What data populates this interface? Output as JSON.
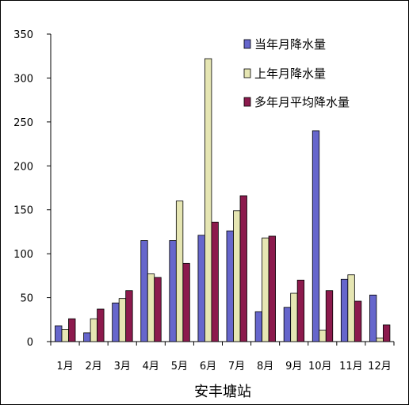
{
  "chart_data": {
    "type": "bar",
    "xlabel": "安丰塘站",
    "ylabel": "",
    "ylim": [
      0,
      350
    ],
    "yticks": [
      0,
      50,
      100,
      150,
      200,
      250,
      300,
      350
    ],
    "grid": false,
    "legend_position": "top-right",
    "categories": [
      "1月",
      "2月",
      "3月",
      "4月",
      "5月",
      "6月",
      "7月",
      "8月",
      "9月",
      "10月",
      "11月",
      "12月"
    ],
    "series": [
      {
        "name": "当年月降水量",
        "color": "#6666cc",
        "values": [
          18,
          10,
          44,
          115,
          115,
          121,
          126,
          34,
          39,
          240,
          71,
          53
        ]
      },
      {
        "name": "上年月降水量",
        "color": "#e6e6b3",
        "values": [
          14,
          26,
          49,
          77,
          160,
          322,
          149,
          118,
          55,
          13,
          76,
          4
        ]
      },
      {
        "name": "多年月平均降水量",
        "color": "#8c1a4d",
        "values": [
          26,
          37,
          58,
          73,
          89,
          136,
          166,
          120,
          70,
          58,
          46,
          19
        ]
      }
    ]
  }
}
